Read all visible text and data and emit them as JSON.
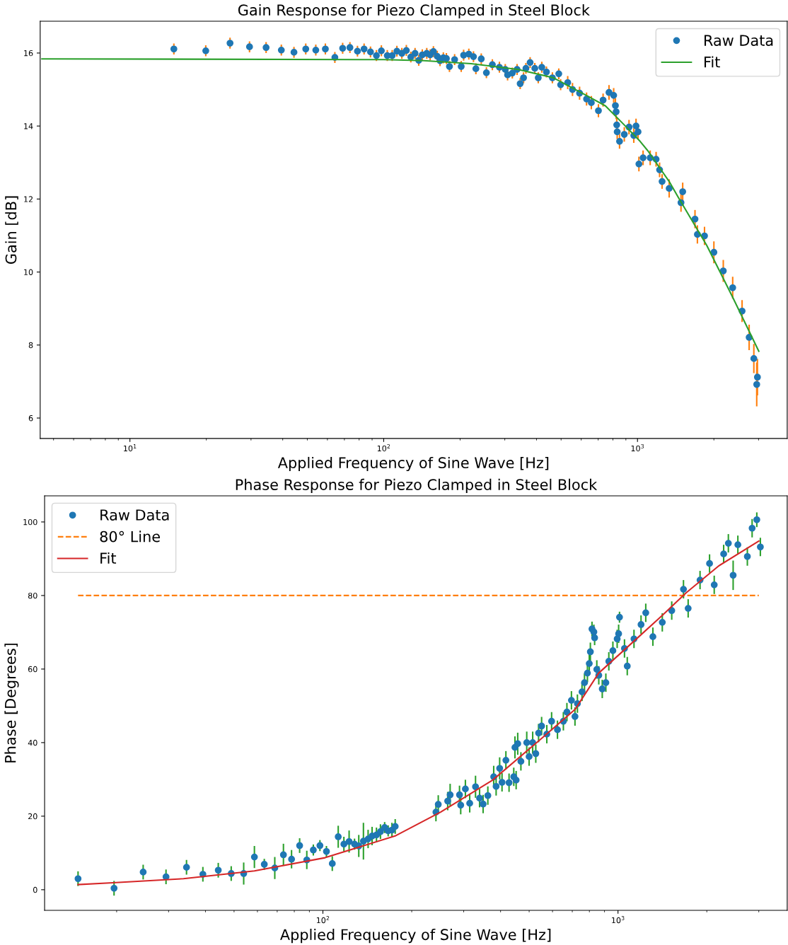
{
  "chart_data": [
    {
      "type": "scatter",
      "title": "Gain Response for Piezo Clamped in Steel Block",
      "xlabel": "Applied Frequency of Sine Wave [Hz]",
      "ylabel": "Gain [dB]",
      "log": "x",
      "xlim": [
        4.43,
        3890
      ],
      "ylim": [
        5.44,
        16.87
      ],
      "xticks": [
        {
          "value": 10,
          "label": "10$^{1}$"
        },
        {
          "value": 100,
          "label": "10$^{2}$"
        },
        {
          "value": 1000,
          "label": "10$^{3}$"
        }
      ],
      "yticks": [
        6,
        8,
        10,
        12,
        14,
        16
      ],
      "legend": "top right",
      "grid": false,
      "series": [
        {
          "name": "Raw Data",
          "marker": "circle",
          "color": "#1f77b4",
          "x": [
            14.9,
            19.9,
            24.8,
            29.6,
            34.4,
            39.5,
            44.3,
            49.3,
            54.0,
            58.9,
            64.2,
            68.9,
            73.6,
            78.8,
            83.7,
            88.7,
            93.6,
            97.9,
            103.3,
            108,
            112.7,
            117.9,
            122.8,
            127.9,
            132.9,
            137.4,
            141.9,
            147.8,
            152.4,
            157,
            162.5,
            166.7,
            171.8,
            176.6,
            181.6,
            190.3,
            202,
            206.5,
            216.5,
            225.8,
            230.8,
            242.3,
            253.9,
            268,
            285.7,
            301.3,
            307.7,
            321.2,
            335.4,
            344.9,
            355.6,
            363.4,
            377.5,
            393.9,
            406.4,
            419.7,
            437.7,
            462,
            489.6,
            497.9,
            530.9,
            554.5,
            591.3,
            630,
            657.8,
            701.6,
            731.9,
            772.2,
            805.7,
            818.4,
            823.9,
            828.4,
            831.8,
            849.8,
            887.2,
            926.1,
            967,
            986.9,
            1005,
            1013,
            1052,
            1122,
            1184,
            1222,
            1250,
            1333,
            1484,
            1507,
            1685,
            1722,
            1837,
            2000,
            2178,
            2372,
            2583,
            2754,
            2874,
            2950,
            2969
          ],
          "values": [
            16.11,
            16.06,
            16.27,
            16.17,
            16.15,
            16.08,
            16.02,
            16.11,
            16.08,
            16.11,
            15.88,
            16.13,
            16.15,
            16.05,
            16.11,
            16.03,
            15.93,
            16.06,
            15.93,
            15.93,
            16.05,
            15.99,
            16.07,
            15.89,
            15.99,
            15.8,
            15.95,
            15.99,
            15.95,
            16.04,
            15.91,
            15.79,
            15.87,
            15.85,
            15.63,
            15.82,
            15.63,
            15.94,
            15.97,
            15.9,
            15.57,
            15.84,
            15.46,
            15.68,
            15.61,
            15.55,
            15.4,
            15.45,
            15.55,
            15.16,
            15.32,
            15.58,
            15.74,
            15.58,
            15.32,
            15.61,
            15.48,
            15.32,
            15.43,
            15.13,
            15.19,
            15.0,
            14.9,
            14.74,
            14.64,
            14.42,
            14.71,
            14.92,
            14.84,
            14.56,
            14.39,
            14.03,
            13.84,
            13.58,
            13.77,
            13.97,
            13.74,
            14.0,
            13.84,
            12.96,
            13.13,
            13.13,
            13.09,
            12.8,
            12.48,
            12.29,
            11.9,
            12.2,
            11.45,
            11.03,
            10.99,
            10.54,
            10.03,
            9.57,
            8.93,
            8.21,
            7.63,
            6.92,
            7.12
          ],
          "errors": [
            0.15,
            0.15,
            0.15,
            0.15,
            0.15,
            0.15,
            0.15,
            0.15,
            0.15,
            0.15,
            0.15,
            0.15,
            0.15,
            0.15,
            0.15,
            0.15,
            0.15,
            0.15,
            0.15,
            0.15,
            0.15,
            0.15,
            0.15,
            0.15,
            0.15,
            0.15,
            0.15,
            0.15,
            0.15,
            0.15,
            0.15,
            0.15,
            0.15,
            0.15,
            0.15,
            0.15,
            0.15,
            0.15,
            0.15,
            0.15,
            0.15,
            0.15,
            0.15,
            0.15,
            0.15,
            0.15,
            0.15,
            0.15,
            0.15,
            0.15,
            0.15,
            0.15,
            0.15,
            0.15,
            0.15,
            0.15,
            0.15,
            0.15,
            0.15,
            0.15,
            0.18,
            0.18,
            0.18,
            0.18,
            0.18,
            0.18,
            0.18,
            0.2,
            0.2,
            0.2,
            0.2,
            0.2,
            0.2,
            0.2,
            0.2,
            0.2,
            0.2,
            0.2,
            0.2,
            0.2,
            0.2,
            0.2,
            0.2,
            0.2,
            0.2,
            0.25,
            0.25,
            0.25,
            0.25,
            0.25,
            0.25,
            0.3,
            0.3,
            0.3,
            0.3,
            0.35,
            0.4,
            0.6,
            0.5
          ]
        },
        {
          "name": "Fit",
          "type": "line",
          "color": "#2ca02c",
          "x": [
            4.5,
            100,
            144,
            221,
            339,
            467,
            644,
            748,
            887,
            1024,
            1099,
            1333,
            1452,
            1875,
            2372,
            3006
          ],
          "values": [
            15.84,
            15.82,
            15.79,
            15.71,
            15.55,
            15.32,
            14.8,
            14.55,
            14.03,
            13.58,
            13.32,
            12.48,
            12.03,
            10.73,
            9.31,
            7.83
          ]
        }
      ]
    },
    {
      "type": "scatter",
      "title": "Phase Response for Piezo Clamped in Steel Block",
      "xlabel": "Applied Frequency of Sine Wave [Hz]",
      "ylabel": "Phase [Degrees]",
      "log": "x",
      "xlim": [
        11.4,
        3745
      ],
      "ylim": [
        -5.6,
        107.1
      ],
      "xticks": [
        {
          "value": 100,
          "label": "10$^{2}$"
        },
        {
          "value": 1000,
          "label": "10$^{3}$"
        }
      ],
      "yticks": [
        0,
        20,
        40,
        60,
        80,
        100
      ],
      "legend": "top left",
      "grid": false,
      "series": [
        {
          "name": "Raw Data",
          "marker": "circle",
          "color": "#1f77b4",
          "x": [
            14.8,
            19.6,
            24.6,
            29.4,
            34.5,
            39.2,
            44.2,
            48.9,
            53.9,
            58.6,
            63.3,
            68.7,
            73.5,
            78.3,
            83.4,
            88.2,
            92.8,
            97.7,
            102.8,
            107.6,
            112.7,
            117.8,
            122.7,
            128,
            132.3,
            137.2,
            142.3,
            146.8,
            151.9,
            156.7,
            161.9,
            166.4,
            171.4,
            175.8,
            241.6,
            246,
            264.8,
            269.9,
            290.4,
            293.1,
            304,
            314.4,
            329,
            339.6,
            349.1,
            362.2,
            379.2,
            386.4,
            397.2,
            404.6,
            417,
            427.4,
            443.4,
            447.5,
            451.7,
            457.3,
            468.8,
            490.7,
            499.8,
            514,
            526.5,
            538.1,
            551,
            573.8,
            595.7,
            623.6,
            653,
            671.3,
            695.4,
            714.9,
            728.6,
            755.3,
            770,
            787.8,
            799.2,
            806.1,
            816.4,
            828.4,
            833.3,
            847.7,
            860.8,
            884.5,
            909.6,
            931,
            961,
            993.6,
            1005,
            1012,
            1052,
            1075,
            1133,
            1197,
            1242,
            1313,
            1413,
            1521,
            1667,
            1729,
            1897,
            2043,
            2119,
            2281,
            2366,
            2456,
            2548,
            2744,
            2848,
            2954,
            3037
          ],
          "values": [
            3.0,
            0.4,
            4.8,
            3.5,
            6.1,
            4.2,
            5.3,
            4.4,
            4.4,
            8.9,
            6.9,
            5.9,
            9.5,
            8.3,
            12.0,
            8.1,
            10.8,
            12.0,
            10.4,
            7.1,
            14.4,
            12.4,
            13.1,
            12.4,
            11.9,
            13.2,
            13.8,
            14.6,
            14.9,
            15.8,
            16.9,
            16.0,
            16.2,
            17.2,
            21.1,
            23.2,
            24.1,
            25.8,
            25.8,
            23.0,
            27.4,
            23.5,
            28.0,
            24.9,
            23.3,
            25.6,
            30.7,
            28.1,
            33.0,
            29.2,
            35.2,
            29.1,
            30.7,
            38.7,
            29.8,
            39.7,
            34.9,
            40.0,
            36.2,
            40.0,
            37.0,
            42.6,
            44.5,
            42.3,
            45.8,
            43.5,
            45.8,
            48.3,
            51.5,
            47.1,
            50.6,
            53.8,
            56.3,
            58.9,
            61.5,
            64.7,
            70.9,
            70.1,
            68.5,
            59.9,
            58.3,
            54.6,
            56.3,
            62.1,
            65.0,
            68.2,
            69.6,
            74.1,
            65.6,
            60.8,
            68.2,
            72.1,
            75.3,
            68.8,
            72.7,
            75.9,
            81.7,
            76.5,
            84.2,
            88.7,
            82.9,
            91.3,
            94.2,
            85.5,
            93.8,
            90.6,
            98.3,
            100.6,
            93.2
          ],
          "errors": [
            2,
            2,
            2,
            2,
            2,
            2,
            2,
            2,
            3,
            3,
            1.5,
            3,
            3,
            2.5,
            2,
            2.5,
            1.5,
            1.5,
            1.5,
            2,
            3,
            2,
            3,
            1.5,
            3,
            5,
            2.5,
            2.5,
            2,
            2,
            1.5,
            1.5,
            2,
            2,
            2.5,
            2.5,
            2.5,
            3,
            2.5,
            2.5,
            2.5,
            2.5,
            3,
            2.5,
            2.5,
            2.5,
            3,
            2.5,
            3,
            2.5,
            2.5,
            2.5,
            2.5,
            3,
            2.5,
            3,
            2.5,
            3,
            2.5,
            3,
            2.5,
            2.5,
            2.5,
            2.5,
            2.5,
            2.5,
            2.5,
            2.5,
            2.5,
            2.5,
            2.5,
            2.5,
            2.5,
            2.5,
            2.5,
            2.5,
            2,
            2,
            2,
            2.5,
            2.5,
            2.5,
            2.5,
            2.5,
            2.5,
            2.5,
            2.5,
            1.5,
            2.5,
            2.5,
            2.5,
            2.5,
            2.5,
            2.5,
            2.5,
            2.5,
            2.5,
            2.5,
            2.5,
            2.5,
            2.5,
            2.5,
            2.5,
            4,
            2.5,
            2.5,
            2.5,
            2,
            2.5
          ]
        },
        {
          "name": "80° Line",
          "type": "line",
          "color": "#ff7f0e",
          "line_style": "dashed",
          "x": [
            14.8,
            3000
          ],
          "values": [
            80,
            80
          ]
        },
        {
          "name": "Fit",
          "type": "line",
          "color": "#d62728",
          "x": [
            14.8,
            19.4,
            33.7,
            58.6,
            101.7,
            176.6,
            250.5,
            376,
            541,
            715,
            860,
            1133,
            1413,
            1700,
            2199,
            3001
          ],
          "values": [
            1.4,
            1.9,
            3.0,
            5.1,
            8.7,
            14.7,
            21.1,
            29.8,
            40.6,
            49.0,
            58.9,
            67.6,
            74.6,
            80.7,
            88.1,
            94.8
          ]
        }
      ]
    }
  ]
}
